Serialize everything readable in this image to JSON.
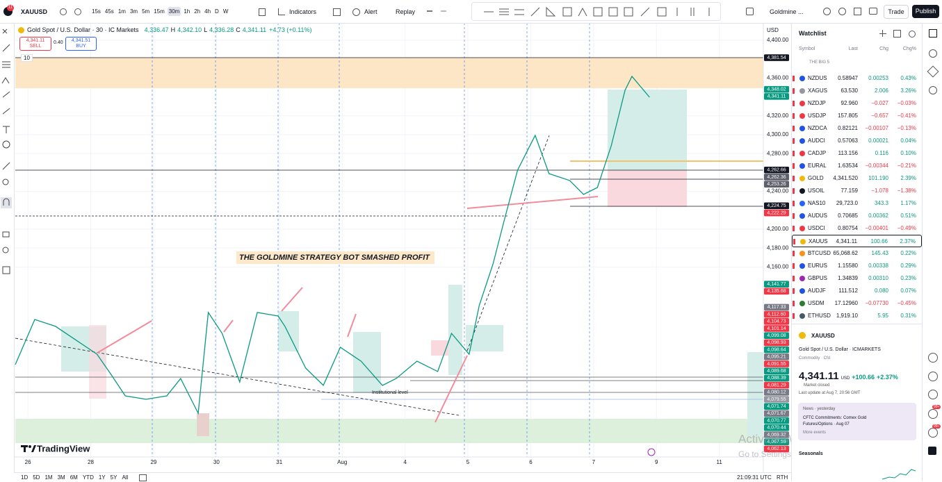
{
  "toolbar": {
    "symbol": "XAUUSD",
    "notification_count": "11",
    "intervals": [
      "15s",
      "45s",
      "1m",
      "3m",
      "5m",
      "15m",
      "30m",
      "1h",
      "2h",
      "4h",
      "D",
      "W"
    ],
    "indicators": "Indicators",
    "alert": "Alert",
    "replay": "Replay",
    "layout": "Goldmine ...",
    "trade": "Trade",
    "publish": "Publish"
  },
  "legend": {
    "title": "Gold Spot / U.S. Dollar · 30 · IC Markets",
    "ohlc": [
      [
        "4,336.47"
      ],
      [
        "H",
        "4,342.10"
      ],
      [
        "L",
        "4,336.28"
      ],
      [
        "C",
        "4,341.11"
      ]
    ],
    "change": "+4.73 (+0.11%)",
    "sell_price": "4,341.11",
    "sell": "SELL",
    "spread": "0.40",
    "buy_price": "4,341.51",
    "buy": "BUY",
    "indicator_count": "10"
  },
  "chart_data": {
    "type": "line",
    "color": "#089981",
    "grid": true,
    "axis_unit": "USD",
    "brand": "TradingView",
    "annotations": [
      "THE GOLDMINE STRATEGY BOT SMASHED PROFIT",
      "Institutional level"
    ],
    "x": [
      -0.2,
      0.11,
      0.44,
      0.77,
      1.1,
      1.33,
      1.55,
      1.88,
      2.21,
      2.43,
      2.71,
      2.87,
      3.09,
      3.37,
      3.65,
      3.98,
      4.09,
      4.42,
      4.7,
      4.97,
      5.3,
      5.64,
      5.86,
      6.19,
      6.52,
      6.74,
      7.02,
      7.18,
      7.4,
      7.57,
      7.79,
      8.07,
      8.29,
      8.62,
      8.84,
      9.06,
      9.28,
      9.5,
      9.61,
      9.89
    ],
    "values": [
      4056.6,
      4104.4,
      4097.1,
      4082.4,
      4067.6,
      4045.6,
      4023.5,
      4019.9,
      4023.5,
      4041.9,
      4005.1,
      4111.8,
      4089.7,
      4038.2,
      4111.8,
      4108.1,
      4097.1,
      4052.9,
      4034.6,
      4075,
      4060.3,
      4034.6,
      4041.9,
      4060.3,
      4049.3,
      4089.7,
      4067.6,
      4119.1,
      4163.2,
      4207.4,
      4262.5,
      4299.3,
      4258.8,
      4251.5,
      4236.8,
      4244.1,
      4288.2,
      4347.1,
      4361.8,
      4339.7
    ],
    "xlim": [
      -0.2,
      11.7
    ],
    "xticks": [
      {
        "value": 0,
        "label": "26"
      },
      {
        "value": 1,
        "label": "28"
      },
      {
        "value": 2,
        "label": "29"
      },
      {
        "value": 3,
        "label": "30"
      },
      {
        "value": 4,
        "label": "31"
      },
      {
        "value": 5,
        "label": "Aug"
      },
      {
        "value": 6,
        "label": "4"
      },
      {
        "value": 7,
        "label": "5"
      },
      {
        "value": 8,
        "label": "6"
      },
      {
        "value": 9,
        "label": "7"
      },
      {
        "value": 10,
        "label": "9"
      },
      {
        "value": 11,
        "label": "11"
      }
    ],
    "ylim": [
      3958.8,
      4416.9
    ],
    "yticks": [
      {
        "value": 4400,
        "label": "4,400.00"
      },
      {
        "value": 4360,
        "label": "4,360.00"
      },
      {
        "value": 4320,
        "label": "4,320.00"
      },
      {
        "value": 4300,
        "label": "4,300.00"
      },
      {
        "value": 4280,
        "label": "4,280.00"
      },
      {
        "value": 4240,
        "label": "4,240.00"
      },
      {
        "value": 4200,
        "label": "4,200.00"
      },
      {
        "value": 4180,
        "label": "4,180.00"
      },
      {
        "value": 4160,
        "label": "4,160.00"
      }
    ],
    "price_labels": [
      {
        "value": 4381.54,
        "label": "4,381.54",
        "color": "#131722"
      },
      {
        "value": 4348.02,
        "label": "4,348.02",
        "color": "#089981"
      },
      {
        "value": 4341.11,
        "label": "4,341.11",
        "color": "#089981"
      },
      {
        "value": 4262.66,
        "label": "4,262.66",
        "color": "#131722"
      },
      {
        "value": 4262.36,
        "label": "4,262.36",
        "color": "#5d606b"
      },
      {
        "value": 4253.26,
        "label": "4,253.26",
        "color": "#5d606b"
      },
      {
        "value": 4224.75,
        "label": "4,224.75",
        "color": "#131722"
      },
      {
        "value": 4222.29,
        "label": "4,222.29",
        "color": "#f23645"
      },
      {
        "value": 4141.77,
        "label": "4,141.77",
        "color": "#089981"
      },
      {
        "value": 4135.68,
        "label": "4,135.68",
        "color": "#f23645"
      },
      {
        "value": 4117.33,
        "label": "4,117.33",
        "color": "#787b86"
      },
      {
        "value": 4112.6,
        "label": "4,112.60",
        "color": "#f23645"
      },
      {
        "value": 4104.73,
        "label": "4,104.73",
        "color": "#f23645"
      },
      {
        "value": 4101.14,
        "label": "4,101.14",
        "color": "#f23645"
      },
      {
        "value": 4099.08,
        "label": "4,099.08",
        "color": "#089981"
      },
      {
        "value": 4098.93,
        "label": "4,098.93",
        "color": "#f23645"
      },
      {
        "value": 4098.64,
        "label": "4,098.64",
        "color": "#089981"
      },
      {
        "value": 4095.21,
        "label": "4,095.21",
        "color": "#787b86"
      },
      {
        "value": 4091.55,
        "label": "4,091.55",
        "color": "#f23645"
      },
      {
        "value": 4089.68,
        "label": "4,089.68",
        "color": "#089981"
      },
      {
        "value": 4088.39,
        "label": "4,088.39",
        "color": "#089981"
      },
      {
        "value": 4081.29,
        "label": "4,081.29",
        "color": "#f23645"
      },
      {
        "value": 4080.12,
        "label": "4,080.12",
        "color": "#787b86"
      },
      {
        "value": 4079.55,
        "label": "4,079.55",
        "color": "#9598a1"
      },
      {
        "value": 4071.74,
        "label": "4,071.74",
        "color": "#089981"
      },
      {
        "value": 4071.67,
        "label": "4,071.67",
        "color": "#787b86"
      },
      {
        "value": 4070.77,
        "label": "4,070.77",
        "color": "#089981"
      },
      {
        "value": 4070.44,
        "label": "4,070.44",
        "color": "#089981"
      },
      {
        "value": 4069.32,
        "label": "4,069.32",
        "color": "#787b86"
      },
      {
        "value": 4067.59,
        "label": "4,067.59",
        "color": "#089981"
      },
      {
        "value": 4062.13,
        "label": "4,062.13",
        "color": "#f23645"
      }
    ]
  },
  "watchlist": {
    "title": "Watchlist",
    "columns": [
      "Symbol",
      "Last",
      "Chg",
      "Chg%"
    ],
    "section": "THE BIG 5",
    "rows": [
      {
        "symbol": "NZDUS",
        "last": "0.58947",
        "chg": "0.00253",
        "pct": "0.43%"
      },
      {
        "symbol": "XAGUS",
        "last": "63.530",
        "chg": "2.006",
        "pct": "3.26%"
      },
      {
        "symbol": "NZDJP",
        "last": "92.960",
        "chg": "−0.027",
        "pct": "−0.03%"
      },
      {
        "symbol": "USDJP",
        "last": "157.805",
        "chg": "−0.657",
        "pct": "−0.41%"
      },
      {
        "symbol": "NZDCA",
        "last": "0.82121",
        "chg": "−0.00107",
        "pct": "−0.13%"
      },
      {
        "symbol": "AUDCI",
        "last": "0.57063",
        "chg": "0.00021",
        "pct": "0.04%"
      },
      {
        "symbol": "CADJP",
        "last": "113.156",
        "chg": "0.116",
        "pct": "0.10%"
      },
      {
        "symbol": "EURAL",
        "last": "1.63534",
        "chg": "−0.00344",
        "pct": "−0.21%"
      },
      {
        "symbol": "GOLD",
        "last": "4,341.520",
        "chg": "101.190",
        "pct": "2.39%"
      },
      {
        "symbol": "USOIL",
        "last": "77.159",
        "chg": "−1.078",
        "pct": "−1.38%"
      },
      {
        "symbol": "NAS10",
        "last": "29,723.0",
        "chg": "343.3",
        "pct": "1.17%"
      },
      {
        "symbol": "AUDUS",
        "last": "0.70685",
        "chg": "0.00362",
        "pct": "0.51%"
      },
      {
        "symbol": "USDCI",
        "last": "0.80754",
        "chg": "−0.00401",
        "pct": "−0.49%"
      },
      {
        "symbol": "XAUUS",
        "last": "4,341.11",
        "chg": "100.66",
        "pct": "2.37%"
      },
      {
        "symbol": "BTCUSD",
        "last": "65,068.62",
        "chg": "145.43",
        "pct": "0.22%"
      },
      {
        "symbol": "EURUS",
        "last": "1.15580",
        "chg": "0.00338",
        "pct": "0.29%"
      },
      {
        "symbol": "GBPUS",
        "last": "1.34839",
        "chg": "0.00310",
        "pct": "0.23%"
      },
      {
        "symbol": "AUDJF",
        "last": "111.512",
        "chg": "0.080",
        "pct": "0.07%"
      },
      {
        "symbol": "USDM",
        "last": "17.12960",
        "chg": "−0.07730",
        "pct": "−0.45%"
      },
      {
        "symbol": "ETHUSD",
        "last": "1,919.10",
        "chg": "5.95",
        "pct": "0.31%"
      }
    ]
  },
  "details": {
    "symbol": "XAUUSD",
    "name": "Gold Spot / U.S. Dollar · ICMARKETS",
    "kind": "Commodity · Cfd",
    "price": "4,341.11",
    "currency": "USD",
    "change": "+100.66",
    "change_pct": "+2.37%",
    "status": "Market closed",
    "updated": "Last update at Aug 7, 20:56 GMT",
    "news_header": "News · yesterday",
    "news_text": "CFTC Commitments: Comex Gold Futures/Options · Aug 07",
    "news_more": "More events",
    "seasonals": "Seasonals",
    "badges": [
      "99+",
      "99+"
    ]
  },
  "bottom": {
    "ranges": [
      "1D",
      "5D",
      "1M",
      "3M",
      "6M",
      "YTD",
      "1Y",
      "5Y",
      "All"
    ],
    "clock": "21:09:31 UTC",
    "session": "RTH"
  },
  "watermark": {
    "title": "Activate Windows",
    "text": "Go to Settings to activate Windows."
  }
}
